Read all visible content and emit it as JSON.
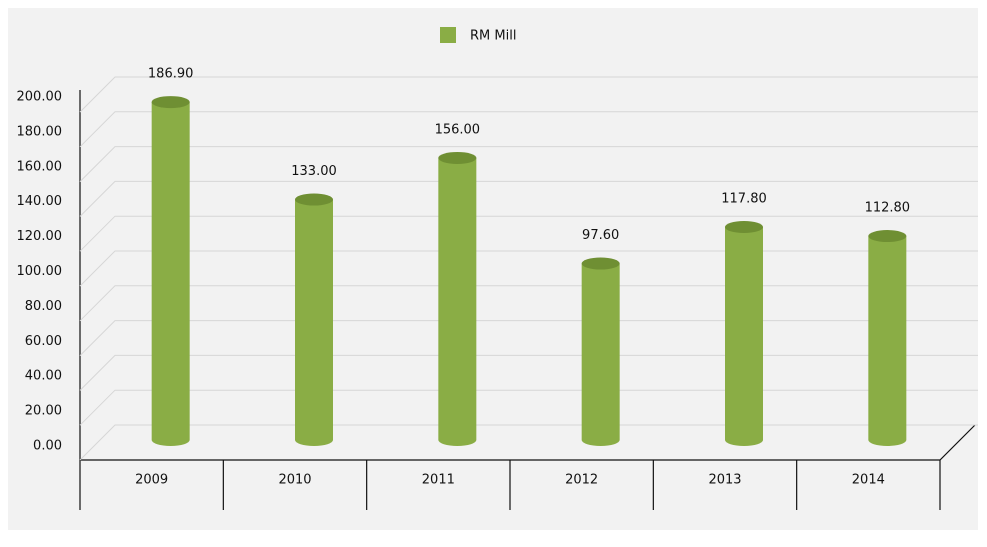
{
  "chart_data": {
    "type": "bar",
    "categories": [
      "2009",
      "2010",
      "2011",
      "2012",
      "2013",
      "2014"
    ],
    "series": [
      {
        "name": "RM Mill",
        "color": "#8aad45",
        "values": [
          186.9,
          133.0,
          156.0,
          97.6,
          117.8,
          112.8
        ],
        "value_labels": [
          "186.90",
          "133.00",
          "156.00",
          "97.60",
          "117.80",
          "112.80"
        ]
      }
    ],
    "ylim": [
      0,
      200
    ],
    "yticks": [
      {
        "value": 0,
        "label": "0.00"
      },
      {
        "value": 20,
        "label": "20.00"
      },
      {
        "value": 40,
        "label": "40.00"
      },
      {
        "value": 60,
        "label": "60.00"
      },
      {
        "value": 80,
        "label": "80.00"
      },
      {
        "value": 100,
        "label": "100.00"
      },
      {
        "value": 120,
        "label": "120.00"
      },
      {
        "value": 140,
        "label": "140.00"
      },
      {
        "value": 160,
        "label": "160.00"
      },
      {
        "value": 180,
        "label": "180.00"
      },
      {
        "value": 200,
        "label": "200.00"
      }
    ],
    "grid": true
  }
}
